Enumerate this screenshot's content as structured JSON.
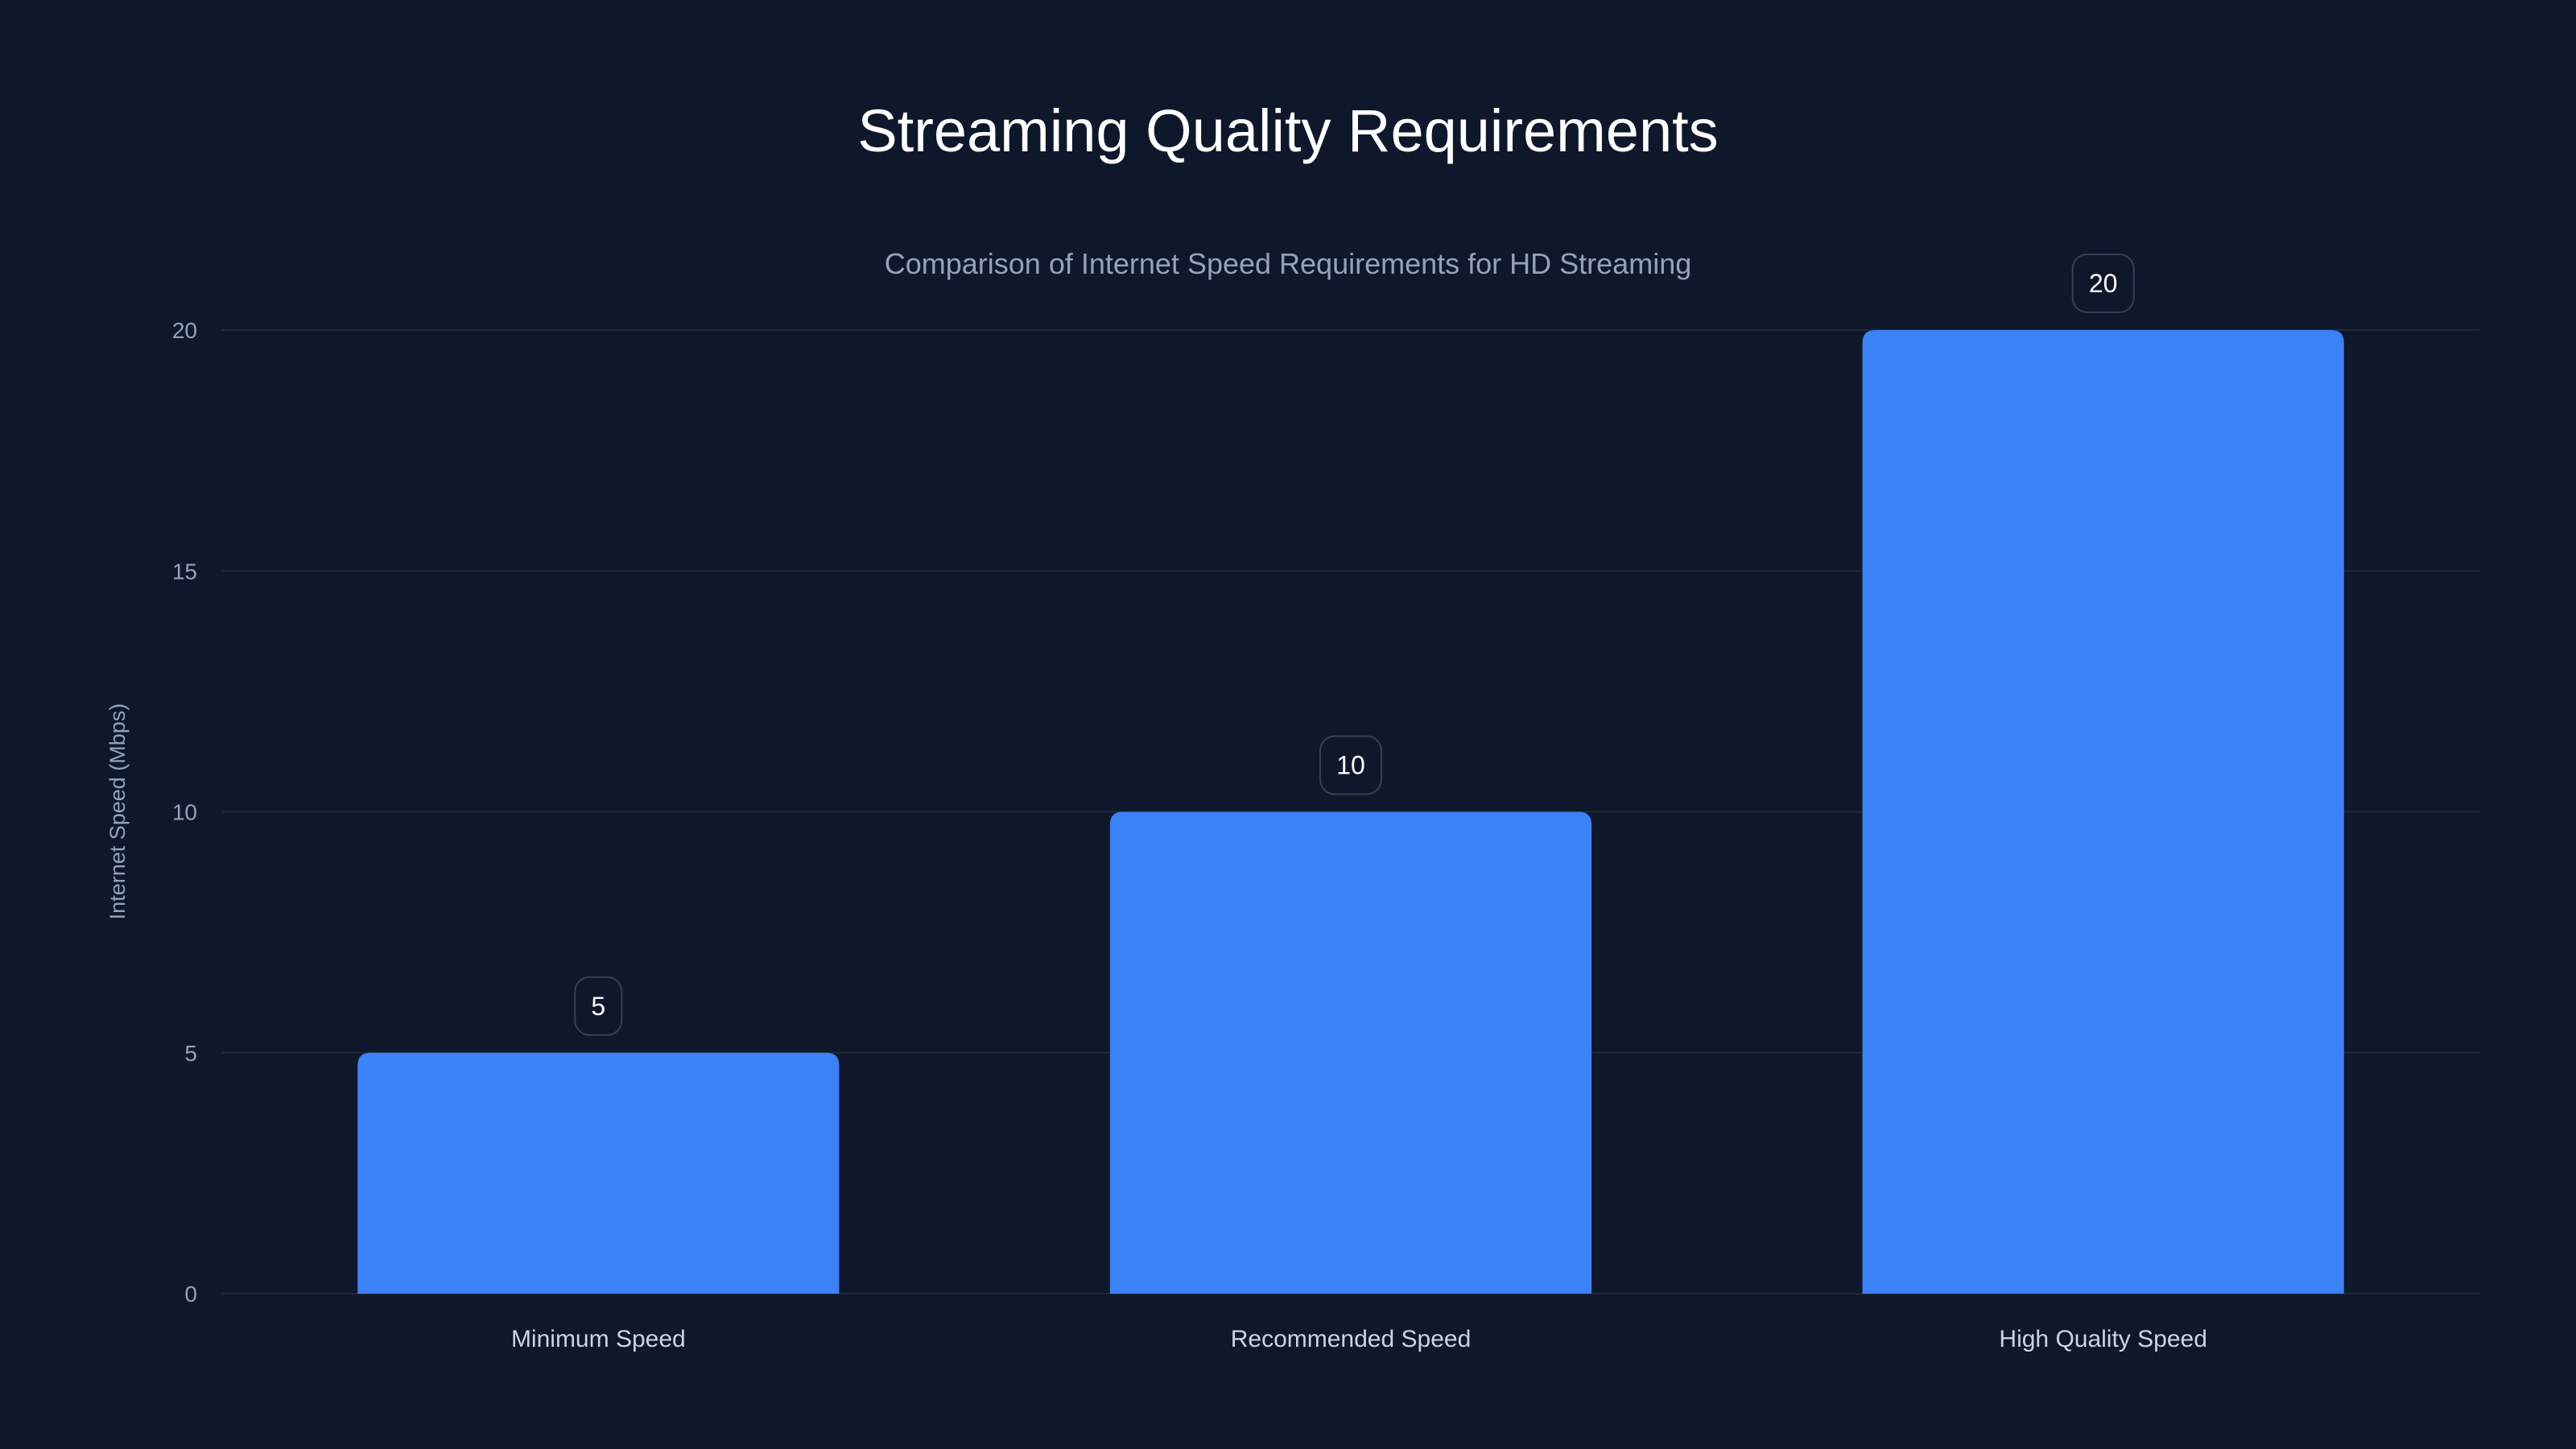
{
  "chart_data": {
    "type": "bar",
    "title": "Streaming Quality Requirements",
    "subtitle": "Comparison of Internet Speed Requirements for HD Streaming",
    "xlabel": "",
    "ylabel": "Internet Speed (Mbps)",
    "categories": [
      "Minimum Speed",
      "Recommended Speed",
      "High Quality Speed"
    ],
    "values": [
      5,
      10,
      20
    ],
    "data_labels": [
      "5",
      "10",
      "20"
    ],
    "ylim": [
      0,
      20
    ],
    "yticks": [
      0,
      5,
      10,
      15,
      20
    ],
    "grid": true,
    "legend": "none",
    "colors": {
      "bar": "#3b82f6",
      "background": "#0f172a",
      "grid": "#1e293b",
      "label_border": "#334155"
    }
  }
}
